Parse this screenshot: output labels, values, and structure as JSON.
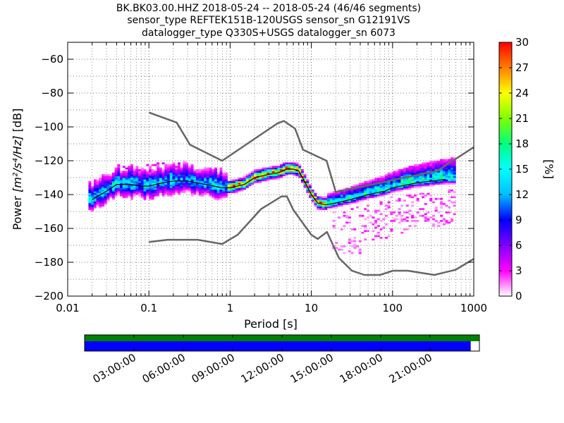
{
  "chart_data": {
    "type": "heatmap",
    "title_lines": [
      "BK.BK03.00.HHZ   2018-05-24 -- 2018-05-24  (46/46 segments)",
      "sensor_type REFTEK151B-120USGS sensor_sn G12191VS",
      "datalogger_type Q330S+USGS datalogger_sn 6073"
    ],
    "xlabel": "Period [s]",
    "ylabel_prefix": "Power ",
    "ylabel_units": "[m²/s⁴/Hz]",
    "ylabel_suffix": " [dB]",
    "x_scale": "log",
    "xlim": [
      0.01,
      1000
    ],
    "ylim": [
      -200,
      -50
    ],
    "x_ticks": [
      0.01,
      0.1,
      1,
      10,
      100,
      1000
    ],
    "x_tick_labels": [
      "0.01",
      "0.1",
      "1",
      "10",
      "100",
      "1000"
    ],
    "y_ticks": [
      -200,
      -180,
      -160,
      -140,
      -120,
      -100,
      -80,
      -60
    ],
    "y_tick_labels": [
      "−200",
      "−180",
      "−160",
      "−140",
      "−120",
      "−100",
      "−80",
      "−60"
    ],
    "grid": true,
    "colorbar": {
      "label": "[%]",
      "range": [
        0,
        30
      ],
      "ticks": [
        0,
        3,
        6,
        9,
        12,
        15,
        18,
        21,
        24,
        27,
        30
      ],
      "colormap": [
        "#ffffff",
        "#ff00ff",
        "#7f00ff",
        "#0000ff",
        "#00bfff",
        "#00ffff",
        "#00ff7f",
        "#7fff00",
        "#ffff00",
        "#ff7f00",
        "#ff0000"
      ]
    },
    "noise_models": {
      "color": "#666666",
      "high_noise_model": {
        "x": [
          0.1,
          0.22,
          0.32,
          0.8,
          3.8,
          4.6,
          6.3,
          7.9,
          15.4,
          20,
          354.8,
          1000
        ],
        "y": [
          -91.5,
          -97.4,
          -110.5,
          -120,
          -98,
          -96.5,
          -101,
          -113.5,
          -120,
          -138.5,
          -126,
          -112
        ]
      },
      "low_noise_model": {
        "x": [
          0.1,
          0.17,
          0.4,
          0.8,
          1.24,
          2.4,
          4.3,
          5,
          6,
          10,
          12,
          15.6,
          21.9,
          31.6,
          45,
          70,
          101,
          154,
          328,
          600,
          1000
        ],
        "y": [
          -168,
          -166.7,
          -166.7,
          -169.2,
          -163.7,
          -148.6,
          -141.1,
          -141.1,
          -149,
          -163.8,
          -166.2,
          -162.1,
          -177.5,
          -185,
          -187.5,
          -187.5,
          -185,
          -185,
          -187.5,
          -184.4,
          -178
        ]
      }
    },
    "mean_psd": {
      "x": [
        0.02,
        0.03,
        0.04,
        0.06,
        0.08,
        0.1,
        0.15,
        0.2,
        0.3,
        0.5,
        0.8,
        1,
        1.5,
        2,
        3,
        4,
        5,
        6,
        7,
        8,
        10,
        12,
        15,
        20,
        30,
        50,
        80,
        100,
        200,
        300,
        450
      ],
      "y": [
        -143,
        -138,
        -134,
        -134,
        -135,
        -135,
        -133,
        -132,
        -132,
        -134,
        -136,
        -136,
        -134,
        -130,
        -128,
        -127,
        -125,
        -125,
        -126,
        -131,
        -140,
        -145,
        -146,
        -145,
        -143,
        -140,
        -138,
        -136,
        -133,
        -132,
        -131
      ]
    },
    "histogram_regions": [
      {
        "period_range": [
          0.018,
          0.9
        ],
        "power_range": [
          -146,
          -122
        ],
        "peak_percent": 15
      },
      {
        "period_range": [
          0.9,
          8
        ],
        "power_range": [
          -139,
          -123
        ],
        "peak_percent": 30
      },
      {
        "period_range": [
          8,
          16
        ],
        "power_range": [
          -148,
          -124
        ],
        "peak_percent": 30
      },
      {
        "period_range": [
          16,
          450
        ],
        "power_range": [
          -150,
          -125
        ],
        "peak_percent": 20
      },
      {
        "period_range": [
          16,
          600
        ],
        "power_range": [
          -175,
          -150
        ],
        "peak_percent": 3
      }
    ]
  },
  "timeline": {
    "labels": [
      "03:00:00",
      "06:00:00",
      "09:00:00",
      "12:00:00",
      "15:00:00",
      "18:00:00",
      "21:00:00"
    ],
    "top_bar_color": "#008000",
    "bottom_bar_color": "#0000ff",
    "coverage_fraction": 0.978
  }
}
